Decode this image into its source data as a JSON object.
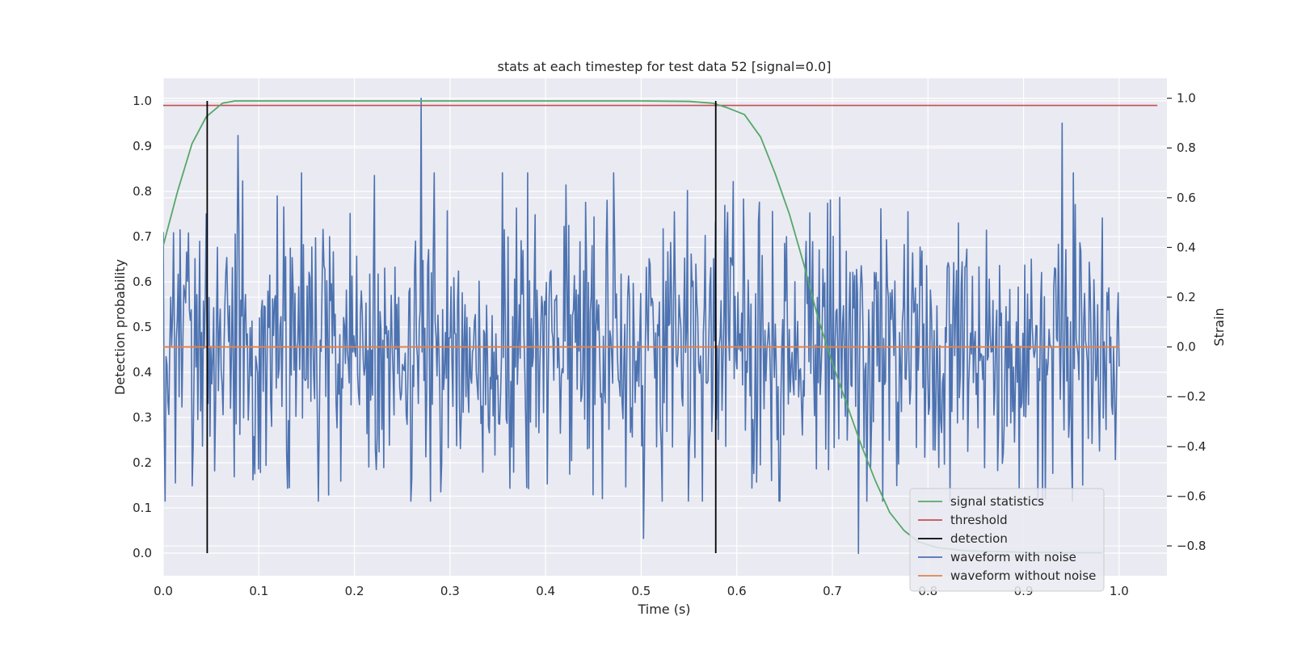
{
  "chart_data": {
    "type": "line",
    "title": "stats at each timestep for test data 52 [signal=0.0]",
    "xlabel": "Time (s)",
    "ylabel": "Detection probability",
    "y2label": "Strain",
    "xlim": [
      0.0,
      1.05
    ],
    "ylim": [
      -0.05,
      1.05
    ],
    "y2lim": [
      -0.92,
      1.08
    ],
    "grid": true,
    "x_ticks": [
      0.0,
      0.1,
      0.2,
      0.3,
      0.4,
      0.5,
      0.6,
      0.7,
      0.8,
      0.9,
      1.0
    ],
    "x_tick_labels": [
      "0.0",
      "0.1",
      "0.2",
      "0.3",
      "0.4",
      "0.5",
      "0.6",
      "0.7",
      "0.8",
      "0.9",
      "1.0"
    ],
    "y_ticks": [
      0.0,
      0.1,
      0.2,
      0.3,
      0.4,
      0.5,
      0.6,
      0.7,
      0.8,
      0.9,
      1.0
    ],
    "y_tick_labels": [
      "0.0",
      "0.1",
      "0.2",
      "0.3",
      "0.4",
      "0.5",
      "0.6",
      "0.7",
      "0.8",
      "0.9",
      "1.0"
    ],
    "y2_ticks": [
      -0.8,
      -0.6,
      -0.4,
      -0.2,
      0.0,
      0.2,
      0.4,
      0.6,
      0.8,
      1.0
    ],
    "y2_tick_labels": [
      "−0.8",
      "−0.6",
      "−0.4",
      "−0.2",
      "0.0",
      "0.2",
      "0.4",
      "0.6",
      "0.8",
      "1.0"
    ],
    "legend_position": "lower-right",
    "series": [
      {
        "name": "signal statistics",
        "axis": "left",
        "color": "#55a868",
        "x": [
          0.0,
          0.015,
          0.03,
          0.045,
          0.062,
          0.075,
          0.09,
          0.1,
          0.2,
          0.3,
          0.4,
          0.5,
          0.55,
          0.575,
          0.59,
          0.608,
          0.625,
          0.64,
          0.655,
          0.67,
          0.685,
          0.7,
          0.715,
          0.73,
          0.745,
          0.76,
          0.775,
          0.79,
          0.81,
          0.84,
          0.9,
          0.95,
          0.982
        ],
        "y": [
          0.68,
          0.8,
          0.905,
          0.965,
          0.995,
          1.0,
          1.0,
          1.0,
          1.0,
          1.0,
          1.0,
          1.0,
          0.999,
          0.995,
          0.985,
          0.97,
          0.92,
          0.84,
          0.75,
          0.64,
          0.52,
          0.42,
          0.33,
          0.24,
          0.16,
          0.09,
          0.05,
          0.025,
          0.012,
          0.005,
          0.002,
          0.001,
          0.001
        ]
      },
      {
        "name": "threshold",
        "axis": "left",
        "color": "#c44e52",
        "x": [
          0.0,
          1.04
        ],
        "y": [
          0.99,
          0.99
        ]
      },
      {
        "name": "detection",
        "axis": "left",
        "color": "#000000",
        "x": [
          0.046,
          0.578
        ],
        "y": [
          0.0,
          1.0
        ]
      },
      {
        "name": "waveform with noise",
        "axis": "right",
        "color": "#4c72b0",
        "x_range": [
          0.0,
          1.0
        ],
        "n_points": 1024,
        "std": 0.28,
        "peaks": [
          [
            0.27,
            1.0
          ],
          [
            0.94,
            0.9
          ],
          [
            0.078,
            0.85
          ],
          [
            0.727,
            -0.83
          ],
          [
            0.502,
            -0.77
          ]
        ]
      },
      {
        "name": "waveform without noise",
        "axis": "right",
        "color": "#dd8452",
        "x": [
          0.0,
          1.0
        ],
        "y": [
          0.0,
          0.0
        ]
      }
    ]
  }
}
